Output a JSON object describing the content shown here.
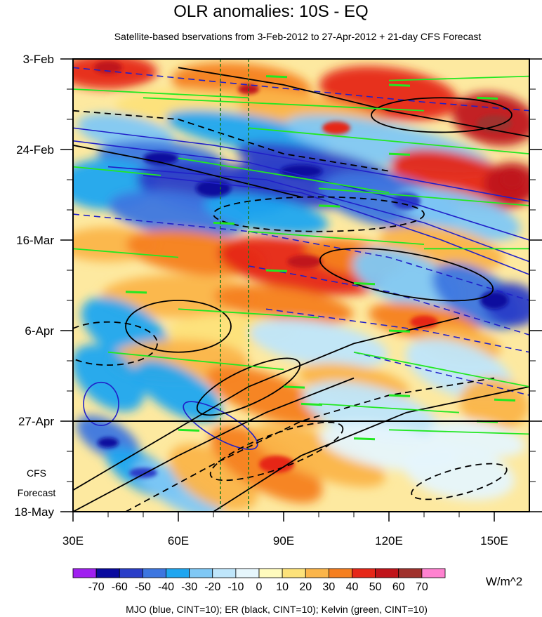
{
  "chart_data": {
    "type": "heatmap",
    "title": "OLR anomalies: 10S - EQ",
    "subtitle": "Satellite-based bservations from 3-Feb-2012 to 27-Apr-2012 + 21-day CFS Forecast",
    "x_ticks": [
      {
        "label": "30E",
        "value": 30
      },
      {
        "label": "60E",
        "value": 60
      },
      {
        "label": "90E",
        "value": 90
      },
      {
        "label": "120E",
        "value": 120
      },
      {
        "label": "150E",
        "value": 150
      }
    ],
    "xlim": [
      30,
      160
    ],
    "y_ticks": [
      {
        "label": "3-Feb",
        "day": 0
      },
      {
        "label": "24-Feb",
        "day": 21
      },
      {
        "label": "16-Mar",
        "day": 42
      },
      {
        "label": "6-Apr",
        "day": 63
      },
      {
        "label": "27-Apr",
        "day": 84
      },
      {
        "label": "18-May",
        "day": 105
      }
    ],
    "ylim_days": [
      0,
      105
    ],
    "forecast_start_day": 84,
    "forecast_label": [
      "CFS",
      "Forecast"
    ],
    "reference_longitudes": [
      72,
      80
    ],
    "colorbar": {
      "levels": [
        -70,
        -60,
        -50,
        -40,
        -30,
        -20,
        -10,
        0,
        10,
        20,
        30,
        40,
        50,
        60,
        70
      ],
      "labels": [
        "-70",
        "-60",
        "-50",
        "-40",
        "-30",
        "-20",
        "-10",
        "0",
        "10",
        "20",
        "30",
        "40",
        "50",
        "60",
        "70"
      ],
      "colors": [
        "#a020f0",
        "#0a0a9e",
        "#2a3ec8",
        "#3d76e0",
        "#1fa6f0",
        "#7fc8f5",
        "#bfe6fb",
        "#e6f6fc",
        "#fffbbe",
        "#fde27a",
        "#fbb54a",
        "#f57f20",
        "#e62718",
        "#c0141a",
        "#a0322d",
        "#ff82d0"
      ],
      "unit": "W/m^2"
    },
    "contours": [
      {
        "name": "MJO",
        "color": "#2020c8",
        "cint": 10
      },
      {
        "name": "ER",
        "color": "#000000",
        "cint": 10
      },
      {
        "name": "Kelvin",
        "color": "#22e822",
        "cint": 10
      }
    ],
    "footer": "MJO (blue, CINT=10); ER (black, CINT=10); Kelvin (green, CINT=10)"
  }
}
